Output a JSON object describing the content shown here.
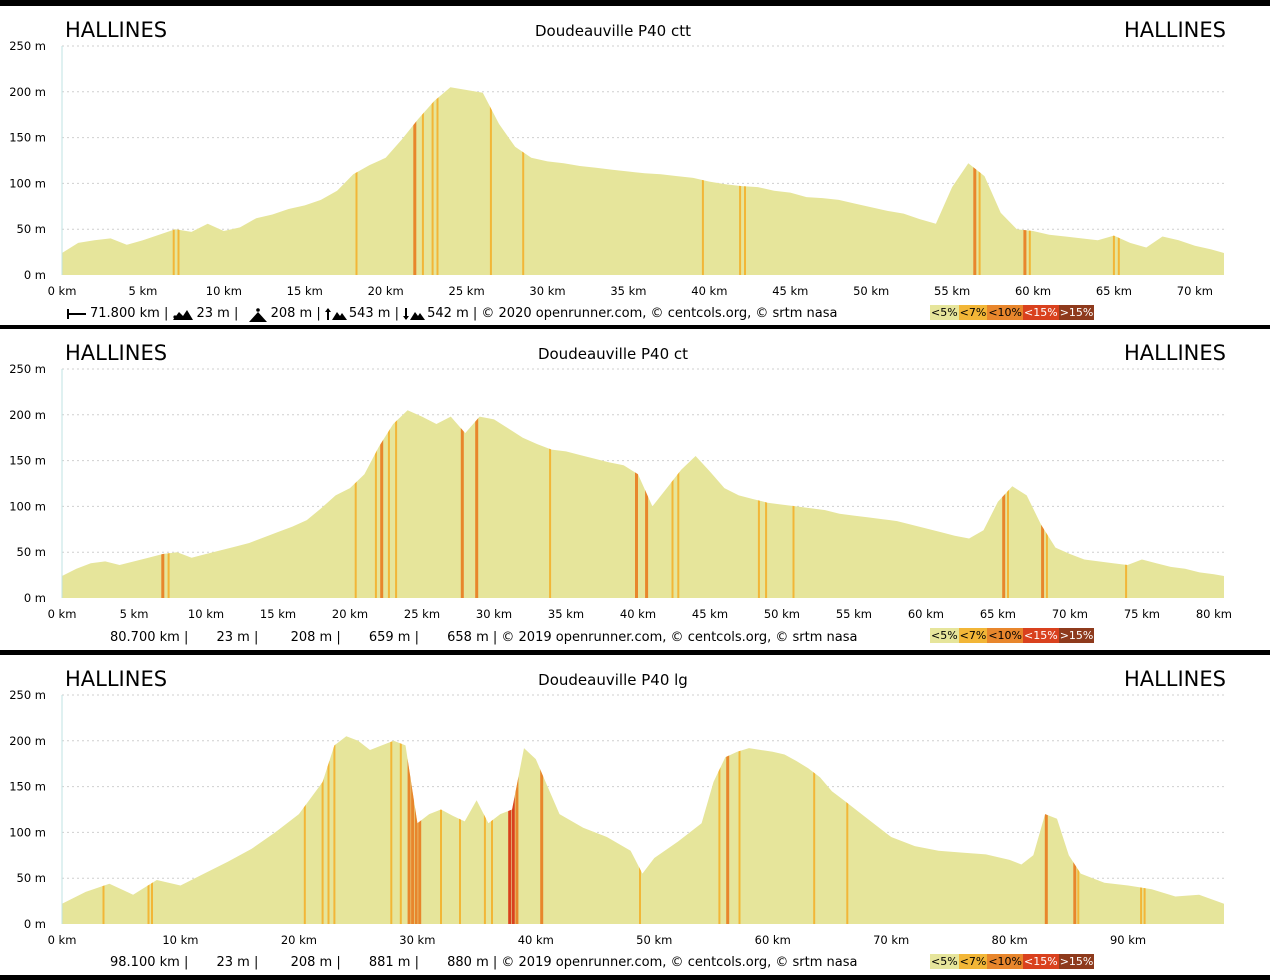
{
  "colors": {
    "fill": "#e6e59b",
    "grade_lt7": "#f2b637",
    "grade_lt10": "#e8862c",
    "grade_lt15": "#d9411e",
    "grade_gt15": "#8e3a1c",
    "grid": "#cfcfcf",
    "frame": "#000000"
  },
  "legend": [
    "<5%",
    "<7%",
    "<10%",
    "<15%",
    ">15%"
  ],
  "panels": [
    {
      "start": "HALLINES",
      "end": "HALLINES",
      "title": "Doudeauville P40 ctt",
      "stats": {
        "distance": "71.800 km |",
        "min_alt": "23 m |",
        "max_alt": "208 m |",
        "ascent": "543 m |",
        "descent": "542 m |",
        "credits": "© 2020 openrunner.com, © centcols.org, © srtm nasa"
      },
      "chart_data": {
        "type": "area",
        "xlabel": "",
        "ylabel": "",
        "ylim": [
          0,
          250
        ],
        "xlim": [
          0,
          71.8
        ],
        "yticks": [
          "0 m",
          "50 m",
          "100 m",
          "150 m",
          "200 m",
          "250 m"
        ],
        "xticks": [
          "0 km",
          "5 km",
          "10 km",
          "15 km",
          "20 km",
          "25 km",
          "30 km",
          "35 km",
          "40 km",
          "45 km",
          "50 km",
          "55 km",
          "60 km",
          "65 km",
          "70 km"
        ],
        "grid": true,
        "x": [
          0,
          1,
          2,
          3,
          4,
          5,
          6,
          7,
          8,
          9,
          10,
          11,
          12,
          13,
          14,
          15,
          16,
          17,
          18,
          19,
          20,
          21,
          22,
          23,
          24,
          25,
          26,
          27,
          28,
          29,
          30,
          31,
          32,
          33,
          34,
          35,
          36,
          37,
          38,
          39,
          40,
          41,
          42,
          43,
          44,
          45,
          46,
          47,
          48,
          49,
          50,
          51,
          52,
          53,
          54,
          55,
          56,
          57,
          58,
          59,
          60,
          61,
          62,
          63,
          64,
          65,
          66,
          67,
          68,
          69,
          70,
          71,
          71.8
        ],
        "elevation": [
          24,
          35,
          38,
          40,
          33,
          38,
          44,
          50,
          47,
          56,
          48,
          52,
          62,
          66,
          72,
          76,
          82,
          92,
          110,
          120,
          128,
          148,
          170,
          190,
          205,
          202,
          199,
          165,
          140,
          128,
          124,
          122,
          119,
          117,
          115,
          113,
          111,
          110,
          108,
          106,
          102,
          99,
          97,
          96,
          92,
          90,
          85,
          84,
          82,
          78,
          74,
          70,
          67,
          61,
          56,
          96,
          122,
          108,
          68,
          50,
          48,
          44,
          42,
          40,
          38,
          43,
          35,
          30,
          42,
          38,
          32,
          28,
          24
        ],
        "grade_bands": [
          {
            "km": 6.9,
            "grade": "<7%"
          },
          {
            "km": 7.2,
            "grade": "<7%"
          },
          {
            "km": 18.2,
            "grade": "<7%"
          },
          {
            "km": 21.8,
            "grade": "<10%"
          },
          {
            "km": 22.3,
            "grade": "<7%"
          },
          {
            "km": 22.9,
            "grade": "<7%"
          },
          {
            "km": 23.2,
            "grade": "<7%"
          },
          {
            "km": 26.5,
            "grade": "<7%"
          },
          {
            "km": 28.5,
            "grade": "<7%"
          },
          {
            "km": 39.6,
            "grade": "<7%"
          },
          {
            "km": 41.9,
            "grade": "<7%"
          },
          {
            "km": 42.2,
            "grade": "<7%"
          },
          {
            "km": 56.4,
            "grade": "<10%"
          },
          {
            "km": 56.7,
            "grade": "<7%"
          },
          {
            "km": 59.5,
            "grade": "<10%"
          },
          {
            "km": 59.8,
            "grade": "<7%"
          },
          {
            "km": 65.0,
            "grade": "<7%"
          },
          {
            "km": 65.3,
            "grade": "<7%"
          }
        ]
      }
    },
    {
      "start": "HALLINES",
      "end": "HALLINES",
      "title": "Doudeauville P40 ct",
      "stats": {
        "distance": "80.700 km |",
        "min_alt": "23 m |",
        "max_alt": "208 m |",
        "ascent": "659 m |",
        "descent": "658 m |",
        "credits": "© 2019 openrunner.com, © centcols.org, © srtm nasa"
      },
      "chart_data": {
        "type": "area",
        "xlabel": "",
        "ylabel": "",
        "ylim": [
          0,
          250
        ],
        "xlim": [
          0,
          80.7
        ],
        "yticks": [
          "0 m",
          "50 m",
          "100 m",
          "150 m",
          "200 m",
          "250 m"
        ],
        "xticks": [
          "0 km",
          "5 km",
          "10 km",
          "15 km",
          "20 km",
          "25 km",
          "30 km",
          "35 km",
          "40 km",
          "45 km",
          "50 km",
          "55 km",
          "60 km",
          "65 km",
          "70 km",
          "75 km",
          "80 km"
        ],
        "grid": true,
        "x": [
          0,
          1,
          2,
          3,
          4,
          5,
          6,
          7,
          8,
          9,
          10,
          11,
          12,
          13,
          14,
          15,
          16,
          17,
          18,
          19,
          20,
          21,
          22,
          23,
          24,
          25,
          26,
          27,
          28,
          29,
          30,
          31,
          32,
          33,
          34,
          35,
          36,
          37,
          38,
          39,
          40,
          41,
          42,
          43,
          44,
          45,
          46,
          47,
          48,
          49,
          50,
          51,
          52,
          53,
          54,
          55,
          56,
          57,
          58,
          59,
          60,
          61,
          62,
          63,
          64,
          65,
          66,
          67,
          68,
          69,
          70,
          71,
          72,
          73,
          74,
          75,
          76,
          77,
          78,
          79,
          80,
          80.7
        ],
        "elevation": [
          24,
          32,
          38,
          40,
          36,
          40,
          44,
          48,
          50,
          44,
          48,
          52,
          56,
          60,
          66,
          72,
          78,
          85,
          98,
          112,
          120,
          135,
          165,
          190,
          205,
          198,
          190,
          198,
          180,
          198,
          195,
          185,
          175,
          168,
          162,
          160,
          156,
          152,
          148,
          145,
          135,
          100,
          120,
          140,
          155,
          138,
          120,
          112,
          108,
          104,
          102,
          100,
          98,
          96,
          92,
          90,
          88,
          86,
          84,
          80,
          76,
          72,
          68,
          65,
          74,
          105,
          122,
          112,
          80,
          55,
          48,
          42,
          40,
          38,
          36,
          42,
          38,
          34,
          32,
          28,
          26,
          24
        ],
        "grade_bands": [
          {
            "km": 7.0,
            "grade": "<10%"
          },
          {
            "km": 7.4,
            "grade": "<7%"
          },
          {
            "km": 20.4,
            "grade": "<7%"
          },
          {
            "km": 21.8,
            "grade": "<7%"
          },
          {
            "km": 22.2,
            "grade": "<10%"
          },
          {
            "km": 22.7,
            "grade": "<7%"
          },
          {
            "km": 23.2,
            "grade": "<7%"
          },
          {
            "km": 27.8,
            "grade": "<10%"
          },
          {
            "km": 28.8,
            "grade": "<10%"
          },
          {
            "km": 33.9,
            "grade": "<7%"
          },
          {
            "km": 39.9,
            "grade": "<10%"
          },
          {
            "km": 40.6,
            "grade": "<10%"
          },
          {
            "km": 42.4,
            "grade": "<7%"
          },
          {
            "km": 42.8,
            "grade": "<7%"
          },
          {
            "km": 48.4,
            "grade": "<7%"
          },
          {
            "km": 48.9,
            "grade": "<7%"
          },
          {
            "km": 50.8,
            "grade": "<7%"
          },
          {
            "km": 65.4,
            "grade": "<10%"
          },
          {
            "km": 65.7,
            "grade": "<7%"
          },
          {
            "km": 68.1,
            "grade": "<10%"
          },
          {
            "km": 68.4,
            "grade": "<7%"
          },
          {
            "km": 73.9,
            "grade": "<7%"
          }
        ]
      }
    },
    {
      "start": "HALLINES",
      "end": "HALLINES",
      "title": "Doudeauville P40 lg",
      "stats": {
        "distance": "98.100 km |",
        "min_alt": "23 m |",
        "max_alt": "208 m |",
        "ascent": "881 m |",
        "descent": "880 m |",
        "credits": "© 2019 openrunner.com, © centcols.org, © srtm nasa"
      },
      "chart_data": {
        "type": "area",
        "xlabel": "",
        "ylabel": "",
        "ylim": [
          0,
          250
        ],
        "xlim": [
          0,
          98.1
        ],
        "yticks": [
          "0 m",
          "50 m",
          "100 m",
          "150 m",
          "200 m",
          "250 m"
        ],
        "xticks": [
          "0 km",
          "10 km",
          "20 km",
          "30 km",
          "40 km",
          "50 km",
          "60 km",
          "70 km",
          "80 km",
          "90 km"
        ],
        "grid": true,
        "x": [
          0,
          2,
          4,
          6,
          8,
          10,
          12,
          14,
          16,
          18,
          20,
          22,
          23,
          24,
          25,
          26,
          27,
          28,
          29,
          30,
          31,
          32,
          33,
          34,
          35,
          36,
          37,
          38,
          39,
          40,
          41,
          42,
          44,
          46,
          48,
          49,
          50,
          52,
          54,
          55,
          56,
          57,
          58,
          59,
          60,
          61,
          62,
          63,
          64,
          65,
          66,
          68,
          70,
          72,
          74,
          76,
          78,
          80,
          81,
          82,
          83,
          84,
          85,
          86,
          88,
          90,
          92,
          94,
          96,
          98.1
        ],
        "elevation": [
          22,
          35,
          44,
          32,
          48,
          42,
          55,
          68,
          82,
          100,
          120,
          155,
          195,
          205,
          200,
          190,
          195,
          200,
          195,
          110,
          120,
          125,
          118,
          112,
          135,
          110,
          120,
          125,
          192,
          180,
          150,
          120,
          105,
          95,
          80,
          55,
          72,
          90,
          110,
          155,
          182,
          188,
          192,
          190,
          188,
          185,
          178,
          170,
          160,
          145,
          135,
          115,
          95,
          85,
          80,
          78,
          76,
          70,
          65,
          75,
          120,
          115,
          75,
          55,
          45,
          42,
          38,
          30,
          32,
          22
        ],
        "grade_bands": [
          {
            "km": 3.5,
            "grade": "<7%"
          },
          {
            "km": 7.3,
            "grade": "<7%"
          },
          {
            "km": 7.6,
            "grade": "<7%"
          },
          {
            "km": 20.5,
            "grade": "<7%"
          },
          {
            "km": 22.0,
            "grade": "<7%"
          },
          {
            "km": 22.5,
            "grade": "<7%"
          },
          {
            "km": 23.0,
            "grade": "<7%"
          },
          {
            "km": 27.8,
            "grade": "<7%"
          },
          {
            "km": 28.6,
            "grade": "<7%"
          },
          {
            "km": 29.3,
            "grade": "<10%"
          },
          {
            "km": 29.6,
            "grade": "<10%"
          },
          {
            "km": 29.9,
            "grade": "<10%"
          },
          {
            "km": 30.2,
            "grade": "<10%"
          },
          {
            "km": 32.0,
            "grade": "<7%"
          },
          {
            "km": 33.6,
            "grade": "<7%"
          },
          {
            "km": 35.7,
            "grade": "<7%"
          },
          {
            "km": 36.3,
            "grade": "<7%"
          },
          {
            "km": 37.8,
            "grade": "<15%"
          },
          {
            "km": 38.1,
            "grade": "<15%"
          },
          {
            "km": 38.4,
            "grade": "<10%"
          },
          {
            "km": 40.5,
            "grade": "<10%"
          },
          {
            "km": 48.8,
            "grade": "<7%"
          },
          {
            "km": 55.5,
            "grade": "<7%"
          },
          {
            "km": 56.2,
            "grade": "<10%"
          },
          {
            "km": 57.2,
            "grade": "<7%"
          },
          {
            "km": 63.5,
            "grade": "<7%"
          },
          {
            "km": 66.3,
            "grade": "<7%"
          },
          {
            "km": 83.1,
            "grade": "<10%"
          },
          {
            "km": 85.5,
            "grade": "<10%"
          },
          {
            "km": 85.8,
            "grade": "<7%"
          },
          {
            "km": 91.1,
            "grade": "<7%"
          },
          {
            "km": 91.4,
            "grade": "<7%"
          }
        ]
      }
    }
  ]
}
